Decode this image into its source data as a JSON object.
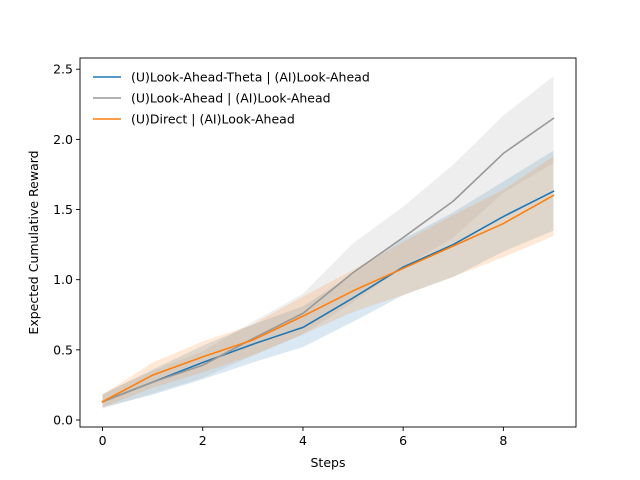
{
  "chart_data": {
    "type": "line",
    "title": "",
    "xlabel": "Steps",
    "ylabel": "Expected Cumulative Reward",
    "xlim": [
      -0.45,
      9.45
    ],
    "ylim": [
      -0.05,
      2.58
    ],
    "x_ticks": [
      0,
      2,
      4,
      6,
      8
    ],
    "x_tick_labels": [
      "0",
      "2",
      "4",
      "6",
      "8"
    ],
    "y_ticks": [
      0.0,
      0.5,
      1.0,
      1.5,
      2.0,
      2.5
    ],
    "y_tick_labels": [
      "0.0",
      "0.5",
      "1.0",
      "1.5",
      "2.0",
      "2.5"
    ],
    "grid": false,
    "legend_position": "upper-left",
    "x": [
      0,
      1,
      2,
      3,
      4,
      5,
      6,
      7,
      8,
      9
    ],
    "series": [
      {
        "name": "(U)Look-Ahead-Theta | (AI)Look-Ahead",
        "color": "#1f77b4",
        "values": [
          0.13,
          0.27,
          0.41,
          0.54,
          0.66,
          0.87,
          1.09,
          1.25,
          1.45,
          1.63
        ],
        "lower": [
          0.09,
          0.18,
          0.29,
          0.41,
          0.52,
          0.7,
          0.89,
          1.02,
          1.2,
          1.35
        ],
        "upper": [
          0.18,
          0.36,
          0.53,
          0.68,
          0.81,
          1.04,
          1.29,
          1.48,
          1.7,
          1.92
        ]
      },
      {
        "name": "(U)Look-Ahead | (AI)Look-Ahead",
        "color": "#999999",
        "values": [
          0.13,
          0.27,
          0.39,
          0.58,
          0.76,
          1.05,
          1.3,
          1.56,
          1.9,
          2.15
        ],
        "lower": [
          0.08,
          0.19,
          0.3,
          0.46,
          0.61,
          0.84,
          1.09,
          1.3,
          1.62,
          1.83
        ],
        "upper": [
          0.19,
          0.35,
          0.49,
          0.7,
          0.9,
          1.26,
          1.52,
          1.82,
          2.17,
          2.45
        ]
      },
      {
        "name": "(U)Direct | (AI)Look-Ahead",
        "color": "#ff7f0e",
        "values": [
          0.13,
          0.32,
          0.45,
          0.57,
          0.74,
          0.92,
          1.08,
          1.24,
          1.4,
          1.6
        ],
        "lower": [
          0.09,
          0.23,
          0.34,
          0.46,
          0.61,
          0.77,
          0.89,
          1.02,
          1.16,
          1.31
        ],
        "upper": [
          0.18,
          0.41,
          0.56,
          0.68,
          0.88,
          1.07,
          1.27,
          1.46,
          1.64,
          1.88
        ]
      }
    ]
  }
}
